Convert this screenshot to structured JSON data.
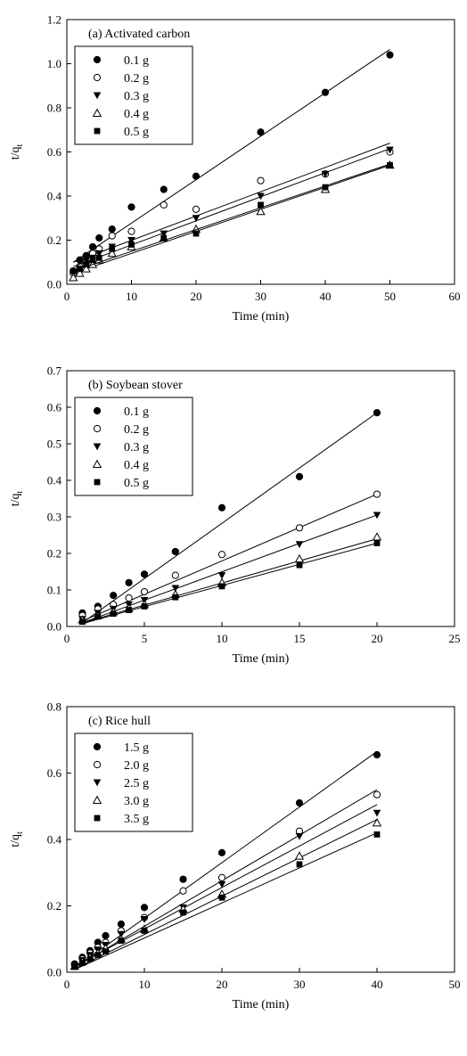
{
  "chart_data": [
    {
      "type": "scatter",
      "title": "(a) Activated carbon",
      "xlabel": "Time (min)",
      "ylabel": "t/q",
      "ylabel_sub": "t",
      "xlim": [
        0,
        60
      ],
      "ylim": [
        0,
        1.2
      ],
      "xticks": [
        "0",
        "10",
        "20",
        "30",
        "40",
        "50",
        "60"
      ],
      "yticks": [
        "0.0",
        "0.2",
        "0.4",
        "0.6",
        "0.8",
        "1.0",
        "1.2"
      ],
      "legend_position": "top-left",
      "grid": false,
      "x": [
        1,
        2,
        3,
        4,
        5,
        7,
        10,
        15,
        20,
        30,
        40,
        50
      ],
      "series": [
        {
          "name": "0.1 g",
          "marker": "filled-circle",
          "values": [
            0.06,
            0.11,
            0.13,
            0.17,
            0.21,
            0.25,
            0.35,
            0.43,
            0.49,
            0.69,
            0.87,
            1.04
          ],
          "fit": [
            0.1,
            1.065
          ]
        },
        {
          "name": "0.2 g",
          "marker": "open-circle",
          "values": [
            0.05,
            0.08,
            0.1,
            0.14,
            0.16,
            0.22,
            0.24,
            0.36,
            0.34,
            0.47,
            0.5,
            0.6
          ],
          "fit": [
            0.1,
            0.64
          ]
        },
        {
          "name": "0.3 g",
          "marker": "filled-triangle-down",
          "values": [
            0.05,
            0.07,
            0.11,
            0.12,
            0.14,
            0.17,
            0.2,
            0.23,
            0.3,
            0.4,
            0.5,
            0.61
          ],
          "fit": [
            0.08,
            0.615
          ]
        },
        {
          "name": "0.4 g",
          "marker": "open-triangle-up",
          "values": [
            0.03,
            0.05,
            0.07,
            0.09,
            0.11,
            0.14,
            0.17,
            0.21,
            0.25,
            0.33,
            0.43,
            0.54
          ],
          "fit": [
            0.05,
            0.54
          ]
        },
        {
          "name": "0.5 g",
          "marker": "filled-square",
          "values": [
            0.06,
            0.07,
            0.09,
            0.11,
            0.12,
            0.16,
            0.18,
            0.21,
            0.23,
            0.36,
            0.44,
            0.54
          ],
          "fit": [
            0.06,
            0.545
          ]
        }
      ]
    },
    {
      "type": "scatter",
      "title": "(b) Soybean stover",
      "xlabel": "Time (min)",
      "ylabel": "t/q",
      "ylabel_sub": "t",
      "xlim": [
        0,
        25
      ],
      "ylim": [
        0,
        0.7
      ],
      "xticks": [
        "0",
        "5",
        "10",
        "15",
        "20",
        "25"
      ],
      "yticks": [
        "0.0",
        "0.1",
        "0.2",
        "0.3",
        "0.4",
        "0.5",
        "0.6",
        "0.7"
      ],
      "legend_position": "top-left",
      "grid": false,
      "x": [
        1,
        2,
        3,
        4,
        5,
        7,
        10,
        15,
        20
      ],
      "series": [
        {
          "name": "0.1 g",
          "marker": "filled-circle",
          "values": [
            0.037,
            0.055,
            0.085,
            0.12,
            0.143,
            0.205,
            0.325,
            0.41,
            0.585
          ],
          "fit": [
            0.01,
            0.585
          ]
        },
        {
          "name": "0.2 g",
          "marker": "open-circle",
          "values": [
            0.03,
            0.048,
            0.06,
            0.078,
            0.095,
            0.14,
            0.197,
            0.27,
            0.362
          ],
          "fit": [
            0.015,
            0.362
          ]
        },
        {
          "name": "0.3 g",
          "marker": "filled-triangle-down",
          "values": [
            0.02,
            0.037,
            0.048,
            0.06,
            0.072,
            0.105,
            0.14,
            0.225,
            0.305
          ],
          "fit": [
            0.01,
            0.305
          ]
        },
        {
          "name": "0.4 g",
          "marker": "open-triangle-up",
          "values": [
            0.018,
            0.03,
            0.04,
            0.05,
            0.06,
            0.088,
            0.12,
            0.185,
            0.245
          ],
          "fit": [
            0.01,
            0.24
          ]
        },
        {
          "name": "0.5 g",
          "marker": "filled-square",
          "values": [
            0.013,
            0.027,
            0.035,
            0.045,
            0.055,
            0.08,
            0.11,
            0.168,
            0.228
          ],
          "fit": [
            0.008,
            0.228
          ]
        }
      ]
    },
    {
      "type": "scatter",
      "title": "(c) Rice hull",
      "xlabel": "Time (min)",
      "ylabel": "t/q",
      "ylabel_sub": "t",
      "xlim": [
        0,
        50
      ],
      "ylim": [
        0,
        0.8
      ],
      "xticks": [
        "0",
        "10",
        "20",
        "30",
        "40",
        "50"
      ],
      "yticks": [
        "0.0",
        "0.2",
        "0.4",
        "0.6",
        "0.8"
      ],
      "legend_position": "top-left",
      "grid": false,
      "x": [
        1,
        2,
        3,
        4,
        5,
        7,
        10,
        15,
        20,
        30,
        40
      ],
      "series": [
        {
          "name": "1.5 g",
          "marker": "filled-circle",
          "values": [
            0.025,
            0.045,
            0.065,
            0.09,
            0.11,
            0.145,
            0.195,
            0.28,
            0.36,
            0.51,
            0.655
          ],
          "fit": [
            0.012,
            0.665
          ]
        },
        {
          "name": "2.0 g",
          "marker": "open-circle",
          "values": [
            0.022,
            0.04,
            0.058,
            0.075,
            0.09,
            0.125,
            0.165,
            0.245,
            0.285,
            0.425,
            0.535
          ],
          "fit": [
            0.015,
            0.55
          ]
        },
        {
          "name": "2.5 g",
          "marker": "filled-triangle-down",
          "values": [
            0.02,
            0.036,
            0.052,
            0.068,
            0.082,
            0.115,
            0.16,
            0.195,
            0.265,
            0.41,
            0.48
          ],
          "fit": [
            0.018,
            0.505
          ]
        },
        {
          "name": "3.0 g",
          "marker": "open-triangle-up",
          "values": [
            0.018,
            0.032,
            0.045,
            0.058,
            0.072,
            0.1,
            0.13,
            0.19,
            0.235,
            0.35,
            0.45
          ],
          "fit": [
            0.01,
            0.46
          ]
        },
        {
          "name": "3.5 g",
          "marker": "filled-square",
          "values": [
            0.016,
            0.028,
            0.04,
            0.052,
            0.063,
            0.095,
            0.125,
            0.18,
            0.225,
            0.325,
            0.415
          ],
          "fit": [
            0.008,
            0.42
          ]
        }
      ]
    }
  ]
}
